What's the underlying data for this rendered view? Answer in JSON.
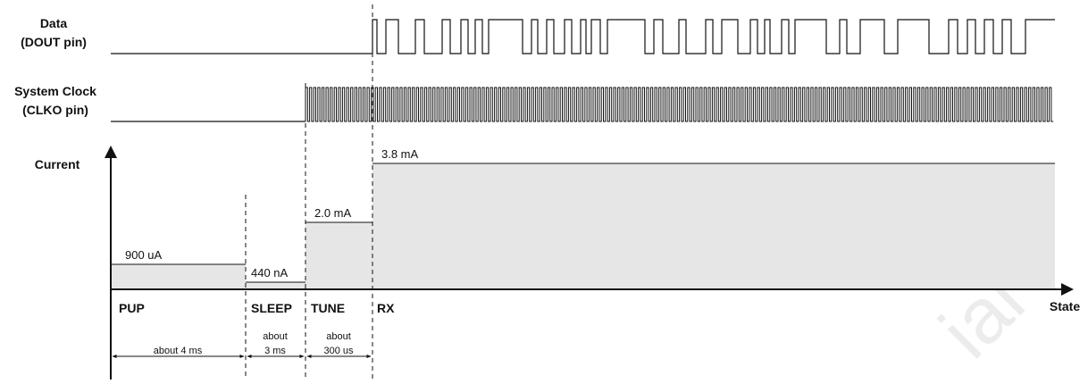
{
  "signals": {
    "data": {
      "line1": "Data",
      "line2": "(DOUT pin)"
    },
    "clock": {
      "line1": "System Clock",
      "line2": "(CLKO pin)"
    }
  },
  "current_axis": {
    "label": "Current",
    "x_label": "State"
  },
  "states": [
    {
      "name": "PUP",
      "current": "900 uA",
      "duration": "about 4 ms"
    },
    {
      "name": "SLEEP",
      "current": "440 nA",
      "duration_line1": "about",
      "duration_line2": "3 ms"
    },
    {
      "name": "TUNE",
      "current": "2.0 mA",
      "duration_line1": "about",
      "duration_line2": "300 us"
    },
    {
      "name": "RX",
      "current": "3.8 mA"
    }
  ],
  "watermark": "ial",
  "colors": {
    "fill": "#e6e6e6",
    "line": "#111111"
  }
}
